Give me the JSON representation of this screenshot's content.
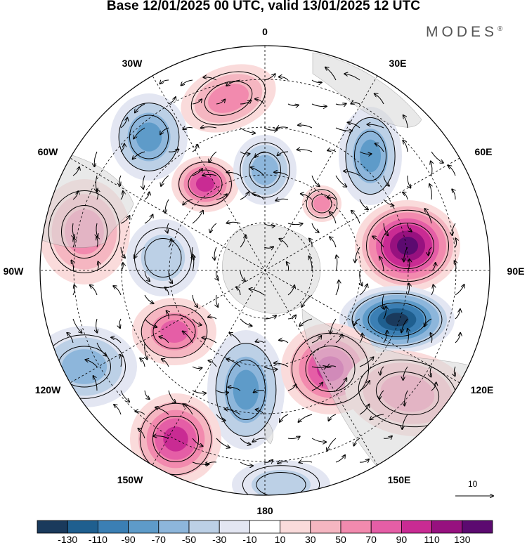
{
  "title": "Base 12/01/2025 00 UTC, valid 13/01/2025 12 UTC",
  "brand": "MODES",
  "brand_mark": "®",
  "longitudes": {
    "n0": "0",
    "e30": "30E",
    "e60": "60E",
    "e90": "90E",
    "e120": "120E",
    "e150": "150E",
    "s180": "180",
    "w150": "150W",
    "w120": "120W",
    "w90": "90W",
    "w60": "60W",
    "w30": "30W"
  },
  "reference_vector": {
    "value": "10"
  },
  "colorbar": {
    "colors": [
      "#1a3a5c",
      "#1f5f8f",
      "#3b7fb4",
      "#5e9bc9",
      "#8db6db",
      "#bcd0e6",
      "#e3e6f2",
      "#ffffff",
      "#fadbdb",
      "#f5b6c1",
      "#f28aae",
      "#e55ea6",
      "#c92b93",
      "#97117f",
      "#5c0a70"
    ],
    "labels": [
      "-130",
      "-110",
      "-90",
      "-70",
      "-50",
      "-30",
      "-10",
      "10",
      "30",
      "50",
      "70",
      "90",
      "110",
      "130"
    ]
  }
}
